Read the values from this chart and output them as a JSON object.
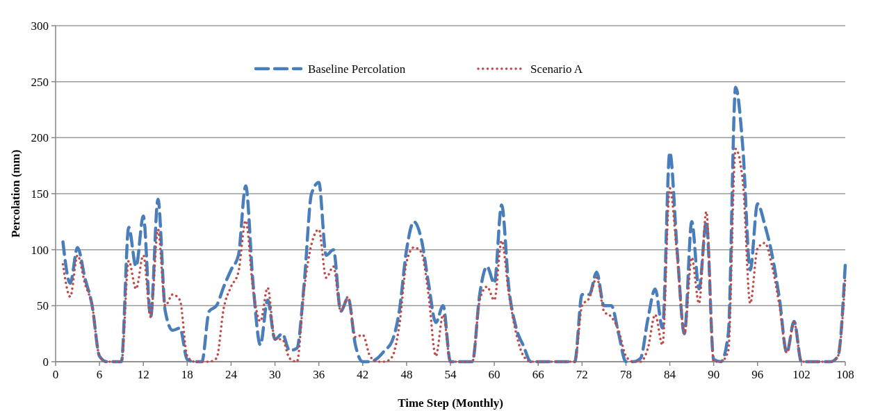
{
  "chart_data": {
    "type": "line",
    "xlabel": "Time Step (Monthly)",
    "ylabel": "Percolation (mm)",
    "x": [
      1,
      2,
      3,
      4,
      5,
      6,
      7,
      8,
      9,
      10,
      11,
      12,
      13,
      14,
      15,
      16,
      17,
      18,
      19,
      20,
      21,
      22,
      23,
      24,
      25,
      26,
      27,
      28,
      29,
      30,
      31,
      32,
      33,
      34,
      35,
      36,
      37,
      38,
      39,
      40,
      41,
      42,
      43,
      44,
      45,
      46,
      47,
      48,
      49,
      50,
      51,
      52,
      53,
      54,
      55,
      56,
      57,
      58,
      59,
      60,
      61,
      62,
      63,
      64,
      65,
      66,
      67,
      68,
      69,
      70,
      71,
      72,
      73,
      74,
      75,
      76,
      77,
      78,
      79,
      80,
      81,
      82,
      83,
      84,
      85,
      86,
      87,
      88,
      89,
      90,
      91,
      92,
      93,
      94,
      95,
      96,
      97,
      98,
      99,
      100,
      101,
      102,
      103,
      104,
      105,
      106,
      107,
      108
    ],
    "series": [
      {
        "name": "Baseline Percolation",
        "color": "#4a7ebb",
        "line_style": "dashed",
        "values": [
          107,
          70,
          102,
          75,
          50,
          5,
          0,
          0,
          0,
          120,
          85,
          130,
          40,
          145,
          45,
          28,
          30,
          2,
          0,
          0,
          45,
          50,
          67,
          82,
          95,
          157,
          70,
          15,
          55,
          20,
          25,
          10,
          12,
          70,
          150,
          160,
          95,
          100,
          45,
          57,
          15,
          0,
          0,
          3,
          10,
          18,
          45,
          100,
          125,
          110,
          70,
          35,
          50,
          0,
          0,
          0,
          0,
          60,
          85,
          70,
          140,
          65,
          30,
          14,
          0,
          0,
          0,
          0,
          0,
          0,
          0,
          60,
          60,
          80,
          50,
          50,
          25,
          0,
          0,
          3,
          38,
          65,
          30,
          187,
          100,
          25,
          125,
          65,
          125,
          2,
          0,
          25,
          245,
          190,
          82,
          141,
          122,
          95,
          56,
          8,
          36,
          0,
          0,
          0,
          0,
          0,
          5,
          87
        ]
      },
      {
        "name": "Scenario A",
        "color": "#be4b48",
        "line_style": "dotted",
        "values": [
          87,
          58,
          95,
          70,
          50,
          5,
          0,
          0,
          0,
          90,
          65,
          95,
          40,
          118,
          50,
          60,
          55,
          5,
          0,
          0,
          0,
          3,
          48,
          67,
          80,
          126,
          65,
          36,
          66,
          20,
          20,
          3,
          0,
          65,
          105,
          118,
          75,
          85,
          45,
          58,
          22,
          24,
          5,
          0,
          0,
          4,
          32,
          89,
          102,
          98,
          60,
          5,
          42,
          0,
          0,
          0,
          0,
          55,
          67,
          55,
          108,
          60,
          25,
          5,
          0,
          0,
          0,
          0,
          0,
          0,
          0,
          50,
          57,
          75,
          45,
          40,
          28,
          5,
          0,
          0,
          12,
          42,
          15,
          155,
          95,
          25,
          93,
          52,
          134,
          0,
          0,
          10,
          190,
          160,
          52,
          101,
          106,
          85,
          50,
          8,
          35,
          0,
          0,
          0,
          0,
          0,
          5,
          75
        ]
      }
    ],
    "xlim": [
      0,
      108
    ],
    "xticks": [
      0,
      6,
      12,
      18,
      24,
      30,
      36,
      42,
      48,
      54,
      60,
      66,
      72,
      78,
      84,
      90,
      96,
      102,
      108
    ],
    "ylim": [
      0,
      300
    ],
    "yticks": [
      0,
      50,
      100,
      150,
      200,
      250,
      300
    ],
    "grid": "y",
    "legend": "top",
    "marker": "none"
  }
}
